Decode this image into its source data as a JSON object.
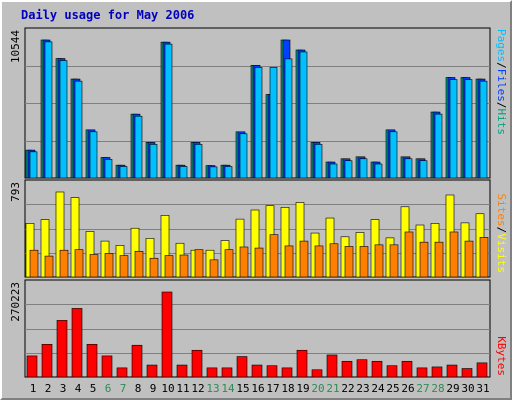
{
  "title": "Daily usage for May 2006",
  "colors": {
    "background": "#c0c0c0",
    "title": "#0000c0",
    "pages": "#00c0ff",
    "files": "#0040ff",
    "hits": "#00a080",
    "sites": "#ff8000",
    "visits": "#ffff00",
    "kbytes": "#ff0000",
    "weekend_label": "#2e8b57",
    "weekday_label": "#000000"
  },
  "chart_data": [
    {
      "type": "bar",
      "name": "hits-files-pages",
      "categories": [
        "1",
        "2",
        "3",
        "4",
        "5",
        "6",
        "7",
        "8",
        "9",
        "10",
        "11",
        "12",
        "13",
        "14",
        "15",
        "16",
        "17",
        "18",
        "19",
        "20",
        "21",
        "22",
        "23",
        "24",
        "25",
        "26",
        "27",
        "28",
        "29",
        "30",
        "31"
      ],
      "ymax_label": "10544",
      "ylim": [
        0,
        10544
      ],
      "series": [
        {
          "name": "Hits",
          "values": [
            2130,
            10544,
            9130,
            7560,
            3680,
            1570,
            980,
            4880,
            2720,
            10380,
            980,
            2720,
            950,
            980,
            3530,
            8610,
            6380,
            10544,
            9780,
            2720,
            1220,
            1470,
            1620,
            1220,
            3680,
            1620,
            1470,
            5040,
            7680,
            7680,
            7560
          ]
        },
        {
          "name": "Files",
          "values": [
            2130,
            10544,
            9130,
            7560,
            3680,
            1570,
            980,
            4880,
            2720,
            10380,
            980,
            2720,
            950,
            980,
            3530,
            8610,
            6380,
            10544,
            9780,
            2720,
            1220,
            1470,
            1620,
            1220,
            3680,
            1620,
            1470,
            5040,
            7680,
            7680,
            7560
          ]
        },
        {
          "name": "Pages",
          "values": [
            2000,
            10400,
            8970,
            7400,
            3530,
            1420,
            880,
            4720,
            2570,
            10230,
            880,
            2570,
            850,
            880,
            3380,
            8450,
            8450,
            9100,
            9630,
            2570,
            1070,
            1320,
            1470,
            1070,
            3530,
            1470,
            1320,
            4880,
            7520,
            7520,
            7400
          ]
        }
      ],
      "legend": [
        "Pages",
        "/",
        "Files",
        "/",
        "Hits"
      ]
    },
    {
      "type": "bar",
      "name": "visits-sites",
      "categories": [
        "1",
        "2",
        "3",
        "4",
        "5",
        "6",
        "7",
        "8",
        "9",
        "10",
        "11",
        "12",
        "13",
        "14",
        "15",
        "16",
        "17",
        "18",
        "19",
        "20",
        "21",
        "22",
        "23",
        "24",
        "25",
        "26",
        "27",
        "28",
        "29",
        "30",
        "31"
      ],
      "ymax_label": "793",
      "ylim": [
        0,
        793
      ],
      "series": [
        {
          "name": "Visits",
          "values": [
            500,
            535,
            793,
            740,
            425,
            335,
            295,
            455,
            360,
            575,
            315,
            250,
            250,
            340,
            540,
            625,
            665,
            650,
            695,
            410,
            550,
            375,
            415,
            535,
            365,
            655,
            485,
            500,
            765,
            505,
            590
          ]
        },
        {
          "name": "Sites",
          "values": [
            250,
            195,
            250,
            255,
            210,
            220,
            200,
            240,
            175,
            200,
            205,
            255,
            160,
            255,
            280,
            270,
            395,
            290,
            335,
            290,
            310,
            285,
            285,
            300,
            300,
            420,
            325,
            325,
            420,
            335,
            370
          ]
        }
      ],
      "legend": [
        "Sites",
        "/",
        "Visits"
      ]
    },
    {
      "type": "bar",
      "name": "kbytes",
      "categories": [
        "1",
        "2",
        "3",
        "4",
        "5",
        "6",
        "7",
        "8",
        "9",
        "10",
        "11",
        "12",
        "13",
        "14",
        "15",
        "16",
        "17",
        "18",
        "19",
        "20",
        "21",
        "22",
        "23",
        "24",
        "25",
        "26",
        "27",
        "28",
        "29",
        "30",
        "31"
      ],
      "ymax_label": "270223",
      "ylim": [
        0,
        270223
      ],
      "series": [
        {
          "name": "KBytes",
          "values": [
            67000,
            104000,
            180000,
            218000,
            104000,
            67000,
            29000,
            101000,
            38000,
            270223,
            38000,
            85000,
            29000,
            29000,
            65000,
            38000,
            36000,
            29000,
            85000,
            23000,
            70000,
            50000,
            55000,
            50000,
            36000,
            50000,
            29000,
            32000,
            38000,
            27000,
            45000
          ]
        }
      ],
      "legend": [
        "KBytes"
      ]
    }
  ],
  "x_axis": {
    "labels": [
      "1",
      "2",
      "3",
      "4",
      "5",
      "6",
      "7",
      "8",
      "9",
      "10",
      "11",
      "12",
      "13",
      "14",
      "15",
      "16",
      "17",
      "18",
      "19",
      "20",
      "21",
      "22",
      "23",
      "24",
      "25",
      "26",
      "27",
      "28",
      "29",
      "30",
      "31"
    ],
    "weekend": [
      6,
      7,
      13,
      14,
      20,
      21,
      27,
      28
    ]
  }
}
